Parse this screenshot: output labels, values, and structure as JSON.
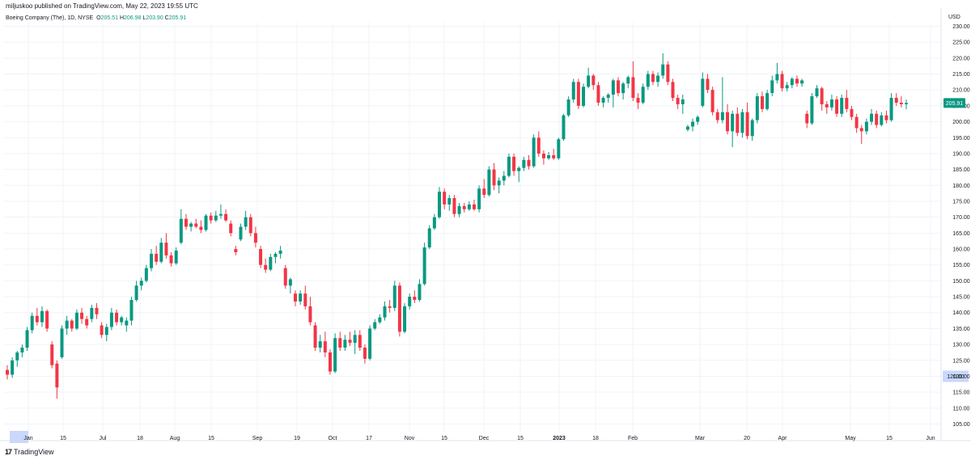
{
  "header": {
    "published_text": "miljuskoo published on TradingView.com, May 22, 2023 19:55 UTC"
  },
  "legend": {
    "symbol": "Boeing Company (The), 1D, NYSE",
    "open_label": "O",
    "open_value": "205.51",
    "high_label": "H",
    "high_value": "206.98",
    "low_label": "L",
    "low_value": "203.90",
    "close_label": "C",
    "close_value": "205.91"
  },
  "footer": {
    "brand": "TradingView",
    "logo_icon": "tradingview-logo-icon"
  },
  "colors": {
    "up": "#089981",
    "down": "#f23645",
    "grid": "#f0f3fa",
    "axis_text": "#131722",
    "highlight": "#c9d8fb"
  },
  "chart_data": {
    "type": "candlestick",
    "currency": "USD",
    "ylim": [
      100,
      230
    ],
    "y_ticks": [
      "230.00",
      "225.00",
      "220.00",
      "215.00",
      "210.00",
      "205.00",
      "200.00",
      "195.00",
      "190.00",
      "185.00",
      "180.00",
      "175.00",
      "170.00",
      "165.00",
      "160.00",
      "155.00",
      "150.00",
      "145.00",
      "140.00",
      "135.00",
      "130.00",
      "125.00",
      "120.00",
      "115.00",
      "110.00",
      "105.00"
    ],
    "x_ticks": [
      "Jan",
      "15",
      "Jul",
      "18",
      "Aug",
      "15",
      "Sep",
      "19",
      "Oct",
      "17",
      "Nov",
      "15",
      "Dec",
      "15",
      "2023",
      "18",
      "Feb",
      "Mar",
      "20",
      "Apr",
      "May",
      "15",
      "Jun"
    ],
    "last_price": "205.91",
    "highlighted_price": "120.00",
    "candles": [
      [
        122.0,
        123.5,
        119.0,
        120.5
      ],
      [
        120.5,
        126.0,
        119.5,
        125.0
      ],
      [
        125.0,
        128.0,
        123.0,
        127.5
      ],
      [
        127.5,
        130.0,
        126.0,
        129.0
      ],
      [
        129.0,
        135.5,
        128.0,
        134.5
      ],
      [
        134.5,
        140.0,
        133.5,
        139.0
      ],
      [
        139.0,
        141.5,
        136.0,
        137.0
      ],
      [
        137.0,
        142.0,
        135.5,
        140.5
      ],
      [
        140.5,
        141.0,
        134.0,
        135.0
      ],
      [
        130.0,
        131.0,
        122.5,
        123.5
      ],
      [
        124.0,
        125.0,
        113.0,
        116.5
      ],
      [
        126.0,
        136.0,
        125.5,
        135.0
      ],
      [
        135.0,
        139.0,
        133.0,
        137.5
      ],
      [
        137.5,
        138.0,
        134.0,
        135.0
      ],
      [
        135.0,
        141.0,
        134.5,
        140.0
      ],
      [
        140.0,
        141.5,
        136.5,
        138.0
      ],
      [
        138.0,
        139.0,
        135.0,
        136.0
      ],
      [
        138.0,
        142.5,
        137.0,
        141.5
      ],
      [
        141.5,
        143.0,
        138.0,
        139.5
      ],
      [
        136.0,
        137.0,
        132.0,
        133.0
      ],
      [
        133.0,
        136.5,
        131.0,
        135.5
      ],
      [
        135.5,
        141.5,
        134.5,
        140.0
      ],
      [
        140.0,
        141.0,
        136.0,
        137.0
      ],
      [
        137.0,
        139.0,
        136.0,
        138.5
      ],
      [
        136.0,
        138.5,
        134.0,
        137.5
      ],
      [
        137.5,
        145.0,
        136.0,
        144.0
      ],
      [
        144.0,
        150.0,
        143.5,
        148.5
      ],
      [
        148.5,
        151.0,
        147.0,
        150.0
      ],
      [
        150.0,
        155.0,
        149.5,
        154.0
      ],
      [
        154.0,
        160.0,
        153.0,
        158.5
      ],
      [
        158.5,
        161.0,
        155.0,
        156.0
      ],
      [
        156.0,
        163.5,
        155.5,
        162.0
      ],
      [
        162.0,
        165.0,
        157.0,
        158.0
      ],
      [
        158.0,
        159.0,
        154.5,
        155.5
      ],
      [
        155.5,
        160.5,
        155.0,
        159.5
      ],
      [
        162.0,
        172.5,
        161.5,
        169.5
      ],
      [
        169.5,
        171.0,
        166.0,
        167.0
      ],
      [
        167.0,
        168.5,
        165.5,
        168.0
      ],
      [
        168.0,
        169.5,
        166.5,
        167.0
      ],
      [
        167.0,
        169.0,
        165.0,
        166.0
      ],
      [
        166.0,
        171.0,
        165.5,
        170.5
      ],
      [
        170.5,
        171.5,
        168.0,
        169.0
      ],
      [
        169.0,
        172.0,
        168.5,
        170.5
      ],
      [
        170.5,
        174.0,
        169.5,
        171.0
      ],
      [
        171.0,
        172.5,
        168.5,
        169.0
      ],
      [
        168.0,
        169.0,
        164.0,
        165.0
      ],
      [
        160.0,
        161.0,
        158.0,
        159.0
      ],
      [
        163.0,
        168.0,
        162.5,
        167.0
      ],
      [
        167.0,
        172.0,
        166.0,
        170.0
      ],
      [
        170.0,
        171.0,
        164.0,
        165.0
      ],
      [
        165.0,
        167.0,
        160.5,
        162.0
      ],
      [
        160.0,
        161.0,
        154.0,
        155.0
      ],
      [
        155.0,
        157.0,
        152.5,
        153.5
      ],
      [
        153.5,
        158.5,
        153.0,
        157.5
      ],
      [
        157.5,
        159.0,
        155.5,
        158.5
      ],
      [
        158.5,
        161.0,
        157.0,
        159.5
      ],
      [
        154.0,
        155.0,
        147.5,
        148.5
      ],
      [
        148.5,
        151.0,
        146.0,
        150.5
      ],
      [
        146.0,
        147.0,
        142.0,
        143.5
      ],
      [
        143.5,
        147.0,
        142.5,
        146.0
      ],
      [
        146.0,
        148.5,
        141.0,
        142.0
      ],
      [
        142.0,
        145.0,
        136.0,
        137.0
      ],
      [
        136.0,
        137.0,
        128.0,
        129.0
      ],
      [
        129.0,
        133.0,
        127.5,
        131.0
      ],
      [
        131.0,
        134.0,
        126.0,
        127.5
      ],
      [
        127.5,
        128.5,
        120.5,
        121.5
      ],
      [
        121.5,
        133.5,
        121.0,
        132.0
      ],
      [
        132.0,
        134.0,
        128.0,
        129.0
      ],
      [
        129.0,
        133.0,
        128.0,
        131.5
      ],
      [
        131.5,
        134.0,
        129.5,
        130.5
      ],
      [
        130.5,
        134.5,
        127.0,
        133.0
      ],
      [
        133.0,
        134.5,
        128.0,
        129.0
      ],
      [
        129.0,
        130.0,
        124.0,
        125.5
      ],
      [
        125.5,
        136.0,
        125.0,
        135.0
      ],
      [
        135.0,
        138.0,
        134.5,
        137.0
      ],
      [
        137.0,
        139.5,
        136.5,
        138.5
      ],
      [
        138.5,
        143.5,
        137.5,
        142.0
      ],
      [
        142.0,
        144.0,
        140.0,
        141.5
      ],
      [
        141.5,
        150.0,
        140.5,
        148.5
      ],
      [
        148.5,
        149.5,
        132.5,
        134.0
      ],
      [
        134.0,
        143.0,
        133.5,
        142.0
      ],
      [
        142.0,
        146.0,
        141.0,
        145.0
      ],
      [
        145.0,
        147.0,
        143.0,
        144.0
      ],
      [
        144.0,
        150.5,
        143.5,
        149.0
      ],
      [
        149.0,
        162.0,
        148.5,
        160.5
      ],
      [
        160.5,
        167.5,
        160.0,
        166.5
      ],
      [
        166.5,
        171.0,
        166.0,
        170.0
      ],
      [
        170.0,
        179.5,
        169.5,
        178.0
      ],
      [
        178.0,
        179.0,
        172.5,
        174.0
      ],
      [
        174.0,
        177.0,
        172.0,
        176.0
      ],
      [
        176.0,
        177.0,
        170.0,
        171.0
      ],
      [
        171.0,
        174.5,
        170.0,
        173.5
      ],
      [
        173.5,
        174.5,
        171.5,
        172.5
      ],
      [
        172.5,
        175.0,
        172.0,
        174.0
      ],
      [
        174.0,
        175.5,
        172.0,
        172.5
      ],
      [
        172.5,
        180.0,
        171.5,
        179.0
      ],
      [
        179.0,
        182.0,
        176.0,
        177.0
      ],
      [
        177.0,
        186.0,
        176.5,
        185.0
      ],
      [
        185.0,
        187.0,
        178.5,
        180.0
      ],
      [
        180.0,
        182.5,
        177.5,
        181.5
      ],
      [
        181.5,
        184.5,
        180.0,
        183.0
      ],
      [
        183.0,
        190.0,
        182.5,
        189.0
      ],
      [
        189.0,
        190.0,
        183.0,
        184.5
      ],
      [
        184.5,
        186.0,
        181.0,
        185.5
      ],
      [
        185.5,
        189.0,
        184.5,
        188.0
      ],
      [
        188.0,
        189.5,
        185.0,
        186.0
      ],
      [
        186.0,
        196.0,
        185.5,
        195.0
      ],
      [
        195.0,
        197.0,
        189.0,
        190.0
      ],
      [
        190.0,
        191.0,
        186.5,
        188.5
      ],
      [
        188.5,
        190.5,
        188.0,
        189.5
      ],
      [
        189.5,
        191.5,
        188.0,
        188.5
      ],
      [
        188.5,
        195.0,
        188.0,
        194.5
      ],
      [
        194.5,
        202.5,
        194.0,
        202.0
      ],
      [
        202.0,
        208.0,
        201.5,
        207.0
      ],
      [
        207.0,
        213.5,
        206.0,
        212.5
      ],
      [
        212.5,
        213.5,
        204.0,
        205.0
      ],
      [
        205.0,
        212.0,
        204.5,
        211.0
      ],
      [
        211.0,
        217.0,
        210.5,
        214.5
      ],
      [
        214.5,
        215.0,
        210.0,
        211.5
      ],
      [
        211.5,
        212.5,
        205.0,
        206.0
      ],
      [
        206.0,
        208.0,
        204.5,
        207.5
      ],
      [
        207.5,
        209.0,
        206.0,
        208.5
      ],
      [
        208.5,
        213.5,
        204.5,
        213.0
      ],
      [
        213.0,
        214.0,
        208.0,
        209.0
      ],
      [
        209.0,
        212.5,
        207.0,
        212.0
      ],
      [
        212.0,
        214.5,
        210.5,
        214.0
      ],
      [
        214.0,
        219.0,
        206.5,
        207.5
      ],
      [
        207.5,
        209.0,
        204.0,
        206.0
      ],
      [
        206.0,
        212.0,
        205.5,
        211.0
      ],
      [
        211.0,
        216.0,
        210.0,
        215.0
      ],
      [
        215.0,
        216.0,
        211.5,
        212.5
      ],
      [
        212.5,
        215.5,
        211.0,
        214.5
      ],
      [
        214.5,
        221.5,
        213.5,
        218.0
      ],
      [
        218.0,
        219.0,
        211.5,
        212.5
      ],
      [
        212.5,
        213.5,
        206.5,
        207.5
      ],
      [
        207.5,
        208.5,
        204.0,
        205.5
      ],
      [
        205.5,
        208.5,
        202.5,
        207.0
      ],
      [
        197.5,
        199.0,
        197.0,
        198.5
      ],
      [
        198.5,
        201.0,
        197.0,
        200.0
      ],
      [
        200.0,
        202.0,
        199.0,
        201.5
      ],
      [
        205.0,
        215.5,
        204.5,
        213.5
      ],
      [
        213.5,
        215.0,
        209.0,
        210.0
      ],
      [
        210.0,
        211.0,
        202.0,
        203.0
      ],
      [
        203.0,
        204.0,
        199.5,
        200.5
      ],
      [
        200.5,
        214.0,
        199.5,
        203.0
      ],
      [
        203.0,
        205.5,
        196.0,
        197.0
      ],
      [
        197.0,
        203.5,
        192.0,
        202.5
      ],
      [
        202.5,
        204.5,
        195.5,
        196.5
      ],
      [
        196.5,
        204.0,
        195.0,
        203.0
      ],
      [
        203.0,
        206.0,
        194.5,
        195.5
      ],
      [
        195.5,
        201.0,
        194.0,
        200.5
      ],
      [
        200.5,
        209.0,
        199.5,
        208.0
      ],
      [
        208.0,
        209.5,
        203.0,
        204.0
      ],
      [
        204.0,
        210.0,
        203.5,
        209.0
      ],
      [
        209.0,
        214.5,
        208.0,
        213.0
      ],
      [
        213.0,
        218.5,
        212.0,
        215.0
      ],
      [
        215.0,
        216.0,
        209.5,
        210.5
      ],
      [
        210.5,
        212.5,
        209.5,
        211.5
      ],
      [
        211.5,
        214.0,
        210.5,
        213.5
      ],
      [
        213.5,
        214.5,
        211.0,
        212.0
      ],
      [
        212.0,
        213.5,
        211.0,
        213.0
      ],
      [
        202.5,
        203.5,
        198.0,
        199.5
      ],
      [
        199.5,
        209.0,
        199.0,
        208.0
      ],
      [
        208.0,
        211.5,
        207.5,
        210.5
      ],
      [
        210.5,
        211.0,
        203.5,
        205.5
      ],
      [
        205.5,
        206.5,
        202.5,
        204.5
      ],
      [
        204.5,
        208.5,
        203.5,
        207.0
      ],
      [
        207.0,
        208.0,
        201.5,
        202.5
      ],
      [
        202.5,
        208.5,
        201.5,
        207.5
      ],
      [
        207.5,
        210.0,
        203.0,
        204.0
      ],
      [
        204.0,
        205.0,
        200.5,
        201.5
      ],
      [
        201.5,
        202.5,
        196.5,
        198.0
      ],
      [
        198.0,
        199.0,
        193.0,
        197.0
      ],
      [
        197.0,
        201.0,
        196.0,
        200.0
      ],
      [
        200.0,
        204.0,
        199.0,
        202.5
      ],
      [
        202.5,
        203.5,
        198.0,
        199.0
      ],
      [
        199.0,
        203.0,
        198.5,
        202.0
      ],
      [
        202.0,
        203.5,
        199.5,
        200.5
      ],
      [
        200.5,
        209.0,
        200.0,
        207.5
      ],
      [
        207.5,
        209.0,
        205.0,
        206.0
      ],
      [
        206.0,
        208.0,
        204.5,
        205.5
      ],
      [
        205.51,
        206.98,
        203.9,
        205.91
      ]
    ]
  }
}
